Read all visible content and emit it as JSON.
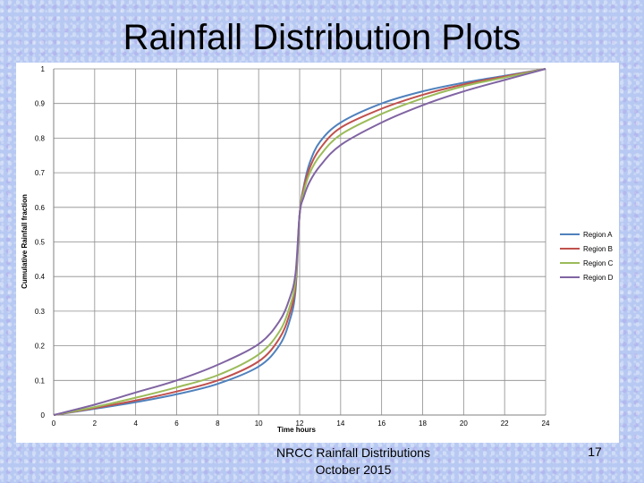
{
  "slide": {
    "title": "Rainfall Distribution Plots",
    "footer_line1": "NRCC Rainfall Distributions",
    "footer_line2": "October 2015",
    "page_number": "17"
  },
  "chart_data": {
    "type": "line",
    "title": "",
    "xlabel": "Time  hours",
    "ylabel": "Cumulative Rainfall  fraction",
    "xlim": [
      0,
      24
    ],
    "ylim": [
      0,
      1
    ],
    "x_ticks": [
      0,
      2,
      4,
      6,
      8,
      10,
      12,
      14,
      16,
      18,
      20,
      22,
      24
    ],
    "y_ticks": [
      0,
      0.1,
      0.2,
      0.3,
      0.4,
      0.5,
      0.6,
      0.7,
      0.8,
      0.9,
      1
    ],
    "grid": true,
    "legend_position": "right",
    "x": [
      0,
      2,
      4,
      6,
      8,
      10,
      11,
      11.5,
      11.8,
      12,
      12.2,
      12.5,
      13,
      14,
      16,
      18,
      20,
      22,
      24
    ],
    "series": [
      {
        "name": "Region A",
        "color": "#4f81bd",
        "values": [
          0,
          0.018,
          0.037,
          0.06,
          0.09,
          0.14,
          0.2,
          0.27,
          0.36,
          0.58,
          0.66,
          0.73,
          0.79,
          0.845,
          0.9,
          0.935,
          0.96,
          0.98,
          1.0
        ]
      },
      {
        "name": "Region B",
        "color": "#c0504d",
        "values": [
          0,
          0.02,
          0.042,
          0.068,
          0.1,
          0.155,
          0.22,
          0.29,
          0.375,
          0.58,
          0.655,
          0.715,
          0.77,
          0.83,
          0.885,
          0.925,
          0.955,
          0.978,
          1.0
        ]
      },
      {
        "name": "Region C",
        "color": "#9bbb59",
        "values": [
          0,
          0.023,
          0.05,
          0.08,
          0.115,
          0.175,
          0.24,
          0.31,
          0.39,
          0.58,
          0.645,
          0.7,
          0.75,
          0.81,
          0.87,
          0.915,
          0.95,
          0.975,
          1.0
        ]
      },
      {
        "name": "Region D",
        "color": "#8064a2",
        "values": [
          0,
          0.03,
          0.065,
          0.1,
          0.145,
          0.205,
          0.27,
          0.335,
          0.41,
          0.58,
          0.63,
          0.675,
          0.72,
          0.78,
          0.845,
          0.895,
          0.935,
          0.968,
          1.0
        ]
      }
    ]
  }
}
